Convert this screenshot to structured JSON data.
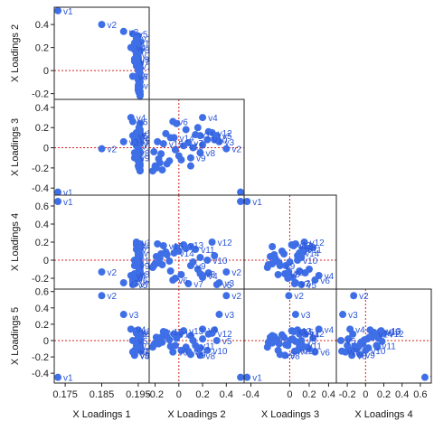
{
  "chart_data": {
    "type": "scatter",
    "title": "",
    "marker_color": "#3F6FE6",
    "label_color": "#2C55D6",
    "ref_line_color": "#D82020",
    "axes": {
      "x": [
        {
          "label": "X Loadings 1",
          "range": [
            0.172,
            0.198
          ],
          "ticks": [
            0.175,
            0.185,
            0.195
          ],
          "tick_labels": [
            "0.175",
            "0.185",
            "0.195"
          ]
        },
        {
          "label": "X Loadings 2",
          "range": [
            -0.25,
            0.55
          ],
          "ticks": [
            -0.2,
            0,
            0.2,
            0.4
          ],
          "tick_labels": [
            "-0.2",
            "0",
            "0.2",
            "0.4"
          ]
        },
        {
          "label": "X Loadings 3",
          "range": [
            -0.47,
            0.48
          ],
          "ticks": [
            -0.4,
            0,
            0.2,
            0.4
          ],
          "tick_labels": [
            "-0.4",
            "0",
            "0.2",
            "0.4"
          ]
        },
        {
          "label": "X Loadings 4",
          "range": [
            -0.32,
            0.72
          ],
          "ticks": [
            -0.2,
            0,
            0.2,
            0.4,
            0.6
          ],
          "tick_labels": [
            "-0.2",
            "0",
            "0.2",
            "0.4",
            "0.6"
          ]
        }
      ],
      "y": [
        {
          "label": "X Loadings 2",
          "range": [
            -0.25,
            0.55
          ],
          "ticks": [
            -0.2,
            0,
            0.2,
            0.4
          ],
          "tick_labels": [
            "-0.2",
            "0",
            "0.2",
            "0.4"
          ]
        },
        {
          "label": "X Loadings 3",
          "range": [
            -0.47,
            0.48
          ],
          "ticks": [
            -0.4,
            -0.2,
            0,
            0.2,
            0.4
          ],
          "tick_labels": [
            "-0.4",
            "-0.2",
            "0",
            "0.2",
            "0.4"
          ]
        },
        {
          "label": "X Loadings 4",
          "range": [
            -0.32,
            0.72
          ],
          "ticks": [
            -0.2,
            0,
            0.2,
            0.4,
            0.6
          ],
          "tick_labels": [
            "-0.2",
            "0",
            "0.2",
            "0.4",
            "0.6"
          ]
        },
        {
          "label": "X Loadings 5",
          "range": [
            -0.52,
            0.63
          ],
          "ticks": [
            -0.4,
            -0.2,
            0,
            0.2,
            0.4,
            0.6
          ],
          "tick_labels": [
            "-0.4",
            "-0.2",
            "0",
            "0.2",
            "0.4",
            "0.6"
          ]
        }
      ]
    },
    "variables": [
      {
        "name": "v1",
        "values": [
          0.173,
          0.52,
          -0.44,
          0.65,
          -0.45
        ]
      },
      {
        "name": "v2",
        "values": [
          0.185,
          0.4,
          -0.01,
          -0.13,
          0.55
        ]
      },
      {
        "name": "v3",
        "values": [
          0.191,
          0.34,
          0.06,
          -0.25,
          0.32
        ]
      },
      {
        "name": "v4",
        "values": [
          0.193,
          0.2,
          0.3,
          -0.17,
          0.14
        ]
      },
      {
        "name": "v5",
        "values": [
          0.1935,
          0.32,
          0.12,
          -0.27,
          0.0
        ]
      },
      {
        "name": "v6",
        "values": [
          0.1935,
          -0.05,
          0.26,
          -0.22,
          -0.14
        ]
      },
      {
        "name": "v7",
        "values": [
          0.194,
          0.08,
          0.05,
          -0.26,
          -0.13
        ]
      },
      {
        "name": "v8",
        "values": [
          0.194,
          0.18,
          -0.05,
          -0.15,
          -0.18
        ]
      },
      {
        "name": "v9",
        "values": [
          0.194,
          0.1,
          -0.1,
          -0.06,
          -0.17
        ]
      },
      {
        "name": "v10",
        "values": [
          0.194,
          0.24,
          0.08,
          0.0,
          -0.12
        ]
      },
      {
        "name": "v11",
        "values": [
          0.1945,
          0.14,
          0.13,
          0.12,
          -0.06
        ]
      },
      {
        "name": "v12",
        "values": [
          0.1945,
          0.28,
          0.15,
          0.2,
          0.09
        ]
      },
      {
        "name": "v13",
        "values": [
          0.1945,
          0.04,
          0.02,
          0.17,
          0.12
        ]
      },
      {
        "name": "v14",
        "values": [
          0.195,
          -0.04,
          0.1,
          0.08,
          0.08
        ]
      },
      {
        "name": "v15",
        "values": [
          0.195,
          -0.13,
          0.04,
          0.16,
          0.11
        ]
      },
      {
        "name": "v16",
        "values": [
          0.1955,
          -0.22,
          -0.23,
          -0.08,
          -0.08
        ]
      },
      {
        "name": "v17",
        "values": [
          0.1952,
          -0.19,
          -0.2,
          0.04,
          0.04
        ]
      },
      {
        "name": "v18",
        "values": [
          0.1952,
          -0.16,
          -0.15,
          0.02,
          0.02
        ]
      },
      {
        "name": "v19",
        "values": [
          0.195,
          -0.08,
          -0.13,
          -0.01,
          0.01
        ]
      },
      {
        "name": "v20",
        "values": [
          0.1955,
          -0.2,
          -0.18,
          -0.04,
          -0.03
        ]
      },
      {
        "name": "v21",
        "values": [
          0.1955,
          -0.1,
          -0.16,
          0.06,
          0.05
        ]
      },
      {
        "name": "v22",
        "values": [
          0.195,
          -0.17,
          -0.11,
          -0.03,
          -0.04
        ]
      },
      {
        "name": "v23",
        "values": [
          0.1955,
          -0.14,
          -0.22,
          -0.05,
          -0.02
        ]
      },
      {
        "name": "v24",
        "values": [
          0.195,
          0.0,
          -0.08,
          0.1,
          0.07
        ]
      },
      {
        "name": "v25",
        "values": [
          0.1955,
          -0.21,
          -0.04,
          -0.06,
          -0.05
        ]
      },
      {
        "name": "v26",
        "values": [
          0.195,
          0.12,
          0.0,
          -0.02,
          0.0
        ]
      },
      {
        "name": "v27",
        "values": [
          0.1955,
          0.06,
          0.18,
          0.13,
          -0.08
        ]
      },
      {
        "name": "v28",
        "values": [
          0.1952,
          0.16,
          0.2,
          -0.1,
          -0.1
        ]
      },
      {
        "name": "v29",
        "values": [
          0.1955,
          -0.02,
          0.24,
          0.14,
          0.03
        ]
      },
      {
        "name": "v30",
        "values": [
          0.195,
          0.1,
          -0.18,
          0.15,
          0.06
        ]
      },
      {
        "name": "v31",
        "values": [
          0.1955,
          -0.07,
          0.1,
          -0.12,
          -0.07
        ]
      },
      {
        "name": "v32",
        "values": [
          0.195,
          0.2,
          0.03,
          -0.19,
          0.02
        ]
      },
      {
        "name": "v33",
        "values": [
          0.1952,
          -0.11,
          0.14,
          0.09,
          0.1
        ]
      },
      {
        "name": "v34",
        "values": [
          0.1955,
          0.02,
          -0.12,
          -0.16,
          -0.12
        ]
      },
      {
        "name": "v35",
        "values": [
          0.195,
          0.3,
          0.08,
          0.05,
          0.13
        ]
      },
      {
        "name": "v36",
        "values": [
          0.1955,
          -0.18,
          0.06,
          0.18,
          -0.01
        ]
      },
      {
        "name": "v37",
        "values": [
          0.1952,
          -0.03,
          -0.02,
          -0.2,
          -0.06
        ]
      },
      {
        "name": "v38",
        "values": [
          0.1955,
          0.18,
          0.12,
          0.03,
          -0.09
        ]
      },
      {
        "name": "v39",
        "values": [
          0.195,
          -0.15,
          -0.06,
          0.07,
          0.04
        ]
      },
      {
        "name": "v40",
        "values": [
          0.1955,
          0.25,
          0.16,
          -0.14,
          0.08
        ]
      }
    ]
  }
}
